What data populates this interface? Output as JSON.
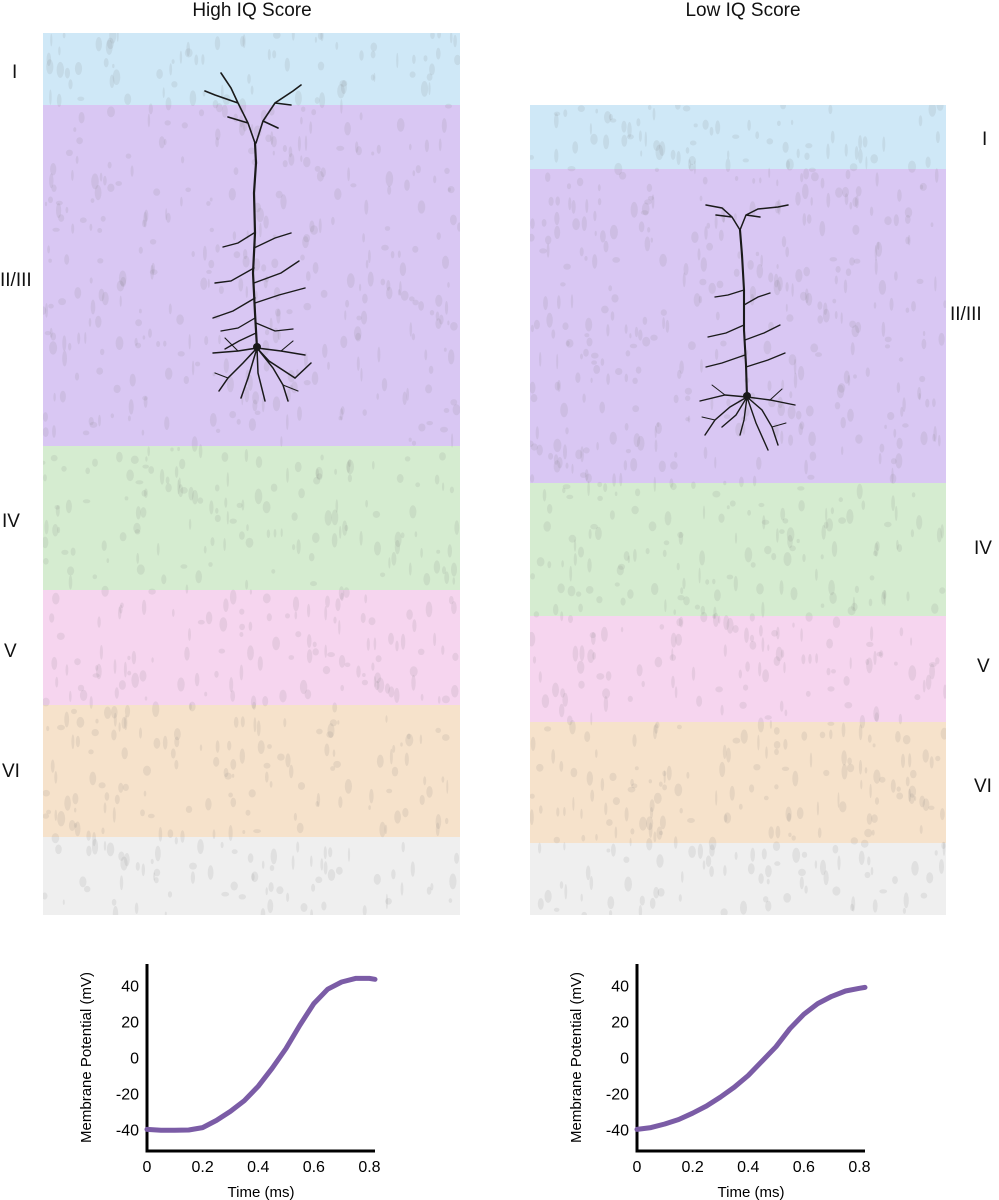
{
  "panels": [
    {
      "title": "High IQ Score",
      "layers": [
        "I",
        "II/III",
        "IV",
        "V",
        "VI"
      ]
    },
    {
      "title": "Low IQ Score",
      "layers": [
        "I",
        "II/III",
        "IV",
        "V",
        "VI"
      ]
    }
  ],
  "colors": {
    "layer_I": "#cfe8f7",
    "layer_II_III": "#d9c7f3",
    "layer_IV": "#d5ecd0",
    "layer_V": "#f6d5ef",
    "layer_VI": "#f6e2cb",
    "white_matter": "#efefef",
    "trace": "#7b5ca6"
  },
  "chart_data": [
    {
      "type": "line",
      "title": "",
      "xlabel": "Time (ms)",
      "ylabel": "Membrane Potential (mV)",
      "xlim": [
        0,
        0.82
      ],
      "ylim": [
        -52,
        52
      ],
      "xticks": [
        0,
        0.2,
        0.4,
        0.6,
        0.8
      ],
      "xtick_labels": [
        "0",
        "0.2",
        "0.4",
        "0.6",
        "0.8"
      ],
      "yticks": [
        -40,
        -20,
        0,
        20,
        40
      ],
      "ytick_labels": [
        "-40",
        "-20",
        "0",
        "20",
        "40"
      ],
      "series": [
        {
          "name": "High IQ Score",
          "x": [
            0,
            0.05,
            0.1,
            0.15,
            0.2,
            0.25,
            0.3,
            0.35,
            0.4,
            0.45,
            0.5,
            0.55,
            0.6,
            0.65,
            0.7,
            0.75,
            0.8,
            0.82
          ],
          "y": [
            -40,
            -40.5,
            -40.5,
            -40.3,
            -39,
            -35,
            -30,
            -24,
            -16,
            -6,
            5,
            18,
            30,
            38,
            42,
            44,
            44,
            43.5
          ]
        }
      ]
    },
    {
      "type": "line",
      "title": "",
      "xlabel": "Time (ms)",
      "ylabel": "Membrane Potential (mV)",
      "xlim": [
        0,
        0.82
      ],
      "ylim": [
        -52,
        52
      ],
      "xticks": [
        0,
        0.2,
        0.4,
        0.6,
        0.8
      ],
      "xtick_labels": [
        "0",
        "0.2",
        "0.4",
        "0.6",
        "0.8"
      ],
      "yticks": [
        -40,
        -20,
        0,
        20,
        40
      ],
      "ytick_labels": [
        "-40",
        "-20",
        "0",
        "20",
        "40"
      ],
      "series": [
        {
          "name": "Low IQ Score",
          "x": [
            0,
            0.05,
            0.1,
            0.15,
            0.2,
            0.25,
            0.3,
            0.35,
            0.4,
            0.45,
            0.5,
            0.55,
            0.6,
            0.65,
            0.7,
            0.75,
            0.8,
            0.82
          ],
          "y": [
            -40,
            -39,
            -37,
            -34.5,
            -31,
            -27,
            -22,
            -16.5,
            -10,
            -2,
            6,
            16,
            24,
            30,
            34,
            37,
            38.5,
            39
          ]
        }
      ]
    }
  ]
}
